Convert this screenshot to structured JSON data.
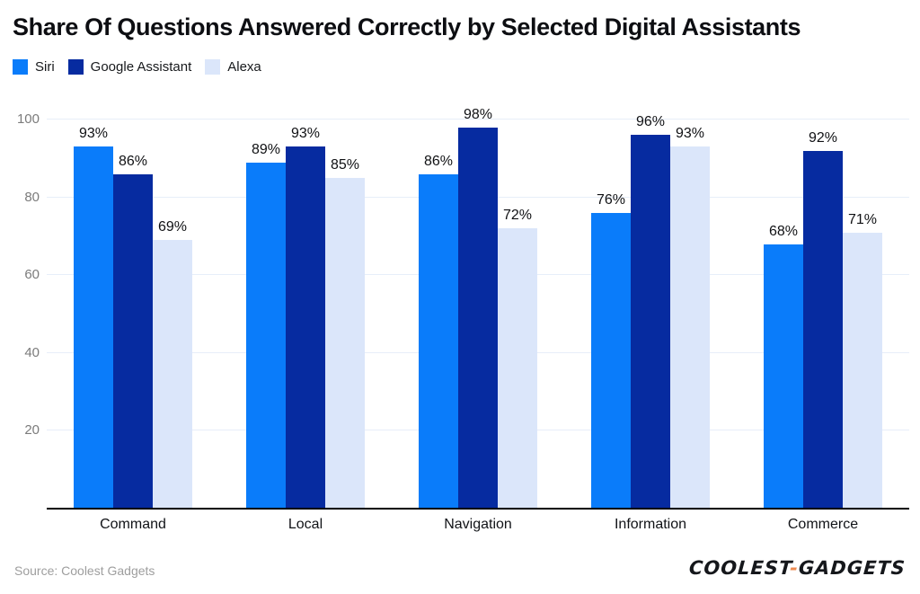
{
  "chart_data": {
    "type": "bar",
    "title": "Share Of Questions Answered Correctly by Selected Digital Assistants",
    "categories": [
      "Command",
      "Local",
      "Navigation",
      "Information",
      "Commerce"
    ],
    "series": [
      {
        "name": "Siri",
        "color": "#0a7cfa",
        "values": [
          93,
          89,
          86,
          76,
          68
        ]
      },
      {
        "name": "Google Assistant",
        "color": "#062ba0",
        "values": [
          86,
          93,
          98,
          96,
          92
        ]
      },
      {
        "name": "Alexa",
        "color": "#dbe6fa",
        "values": [
          69,
          85,
          72,
          93,
          71
        ]
      }
    ],
    "value_suffix": "%",
    "xlabel": "",
    "ylabel": "",
    "ylim": [
      0,
      100
    ],
    "yticks": [
      20,
      40,
      60,
      80,
      100
    ],
    "grid": true,
    "legend_position": "top-left",
    "colors": {
      "gridline": "#e7eef9",
      "axis_line": "#000000",
      "tick_label": "#7b7b7b",
      "value_label": "#101114"
    }
  },
  "footer": {
    "source": "Source: Coolest Gadgets",
    "logo": {
      "part1": "COOLEST",
      "hyphen": "-",
      "part2": "GADGETS",
      "hyphen_color": "#ed8a50"
    }
  }
}
